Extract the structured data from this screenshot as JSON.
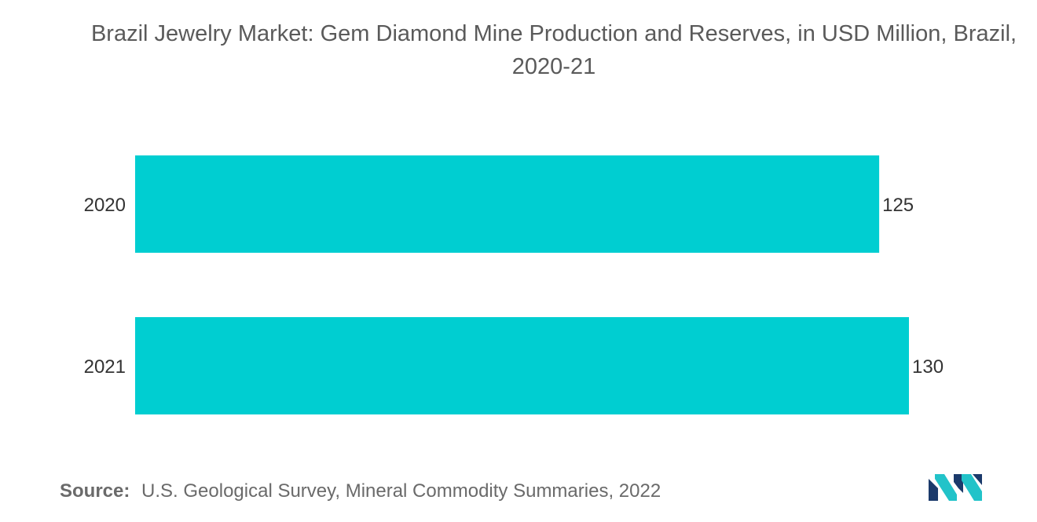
{
  "chart_data": {
    "type": "bar",
    "orientation": "horizontal",
    "title": "Brazil Jewelry Market: Gem Diamond Mine Production and Reserves, in USD Million, Brazil, 2020-21",
    "categories": [
      "2020",
      "2021"
    ],
    "values": [
      125,
      130
    ],
    "data_labels": [
      "125",
      "130"
    ],
    "xlabel": "",
    "ylabel": "",
    "xlim": [
      0,
      130
    ],
    "grid": false,
    "legend": "none",
    "bar_color": "#00CED1"
  },
  "source": {
    "label": "Source:",
    "text": "U.S. Geological Survey, Mineral Commodity Summaries, 2022"
  },
  "logo": {
    "icon": "mordor-intelligence-logo",
    "colors": [
      "#1B3A6B",
      "#22C3C9"
    ]
  }
}
